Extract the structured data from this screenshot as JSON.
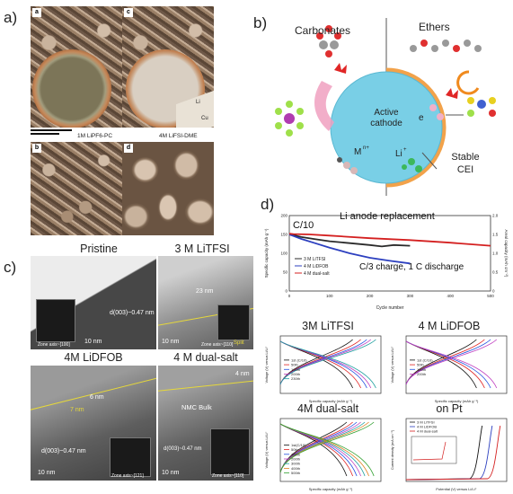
{
  "panel_labels": {
    "a": "a)",
    "b": "b)",
    "c": "c)",
    "d": "d)"
  },
  "panel_a": {
    "sublabels": [
      "a",
      "c",
      "b",
      "d"
    ],
    "caption_left": "1M LiPF6-PC",
    "caption_right": "4M LiFSI-DME",
    "li_label": "Li",
    "cu_label": "Cu"
  },
  "panel_b": {
    "carbonates": "Carbonates",
    "ethers": "Ethers",
    "center_line1": "Active",
    "center_line2": "cathode",
    "electron": "e",
    "metal_ion": "M",
    "metal_sup": "n+",
    "li_ion": "Li",
    "li_sup": "+",
    "stable": "Stable",
    "cei": "CEI"
  },
  "panel_c": {
    "titles": [
      "Pristine",
      "3 M LiTFSI",
      "4M LiDFOB",
      "4 M dual-salt"
    ],
    "scale": "10 nm",
    "d_spacing": "d(003)~0.47 nm",
    "thick_3m": "23 nm",
    "split": "Split",
    "thick_dfob_a": "6 nm",
    "thick_dfob_b": "7 nm",
    "thick_dual": "4 nm",
    "nmc_bulk": "NMC Bulk",
    "zone_a": "Zone axis~[100]",
    "zone_b": "Zone axis~[110]",
    "zone_c": "Zone axis~[121]",
    "zone_d": "Zone axis~[110]"
  },
  "panel_d": {
    "main": {
      "rate_label": "C/10",
      "annotation": "Li anode replacement",
      "bottom_note": "C/3 charge, 1 C discharge",
      "ylabel_left": "Specific capacity (mAh g⁻¹)",
      "ylabel_right": "Areal capacity (mAh cm⁻²)",
      "xlabel": "Cycle number",
      "legend": [
        "3 M LiTFSI",
        "4 M LiDFOB",
        "4 M dual-salt"
      ],
      "colors": {
        "tfsi": "#2b2b2b",
        "dfob": "#2c3fbf",
        "dual": "#d42020"
      },
      "x_ticks": [
        "0",
        "100",
        "200",
        "300",
        "400",
        "500"
      ],
      "y_ticks_left": [
        "0",
        "50",
        "100",
        "150",
        "200"
      ],
      "y_ticks_right": [
        "0",
        "0.5",
        "1.0",
        "1.5",
        "2.0"
      ]
    },
    "sub_titles": [
      "3M LiTFSI",
      "4 M LiDFOB",
      "4M dual-salt",
      "on Pt"
    ],
    "voltage_label": "Voltage (V) versus Li/Li⁺",
    "capacity_label": "Specific capacity (mAh g⁻¹)",
    "cycle_legend_4": [
      "1st (C/10)",
      "50th",
      "100th",
      "200th",
      "230th"
    ],
    "cycle_legend_dfob": [
      "1st (C/10)",
      "50th",
      "100th",
      "200th"
    ],
    "cycle_legend_dual": [
      "1st(C/10)",
      "50th",
      "100th",
      "200th",
      "300th",
      "400th",
      "500th"
    ],
    "pt_legend": [
      "3 M LiTFSI",
      "4 M LiDFOB",
      "4 M dual-salt"
    ],
    "pt_ylabel": "Current density (mA cm⁻²)",
    "pt_xlabel": "Potential (V) versus Li/Li⁺"
  },
  "chart_data": [
    {
      "type": "line",
      "xlabel": "Cycle number",
      "ylabel": "Specific capacity (mAh g⁻¹)",
      "xlim": [
        0,
        500
      ],
      "ylim": [
        0,
        200
      ],
      "series": [
        {
          "name": "3 M LiTFSI",
          "x": [
            0,
            10,
            30,
            60,
            100,
            150,
            200,
            230,
            260,
            300
          ],
          "y": [
            150,
            148,
            143,
            138,
            132,
            127,
            122,
            118,
            122,
            120
          ]
        },
        {
          "name": "4 M LiDFOB",
          "x": [
            0,
            10,
            30,
            60,
            100,
            150,
            200,
            250,
            300
          ],
          "y": [
            150,
            146,
            138,
            128,
            115,
            100,
            88,
            80,
            73
          ]
        },
        {
          "name": "4 M dual-salt",
          "x": [
            0,
            10,
            50,
            100,
            200,
            300,
            400,
            500
          ],
          "y": [
            152,
            151,
            150,
            147,
            140,
            135,
            128,
            120
          ]
        }
      ]
    }
  ]
}
